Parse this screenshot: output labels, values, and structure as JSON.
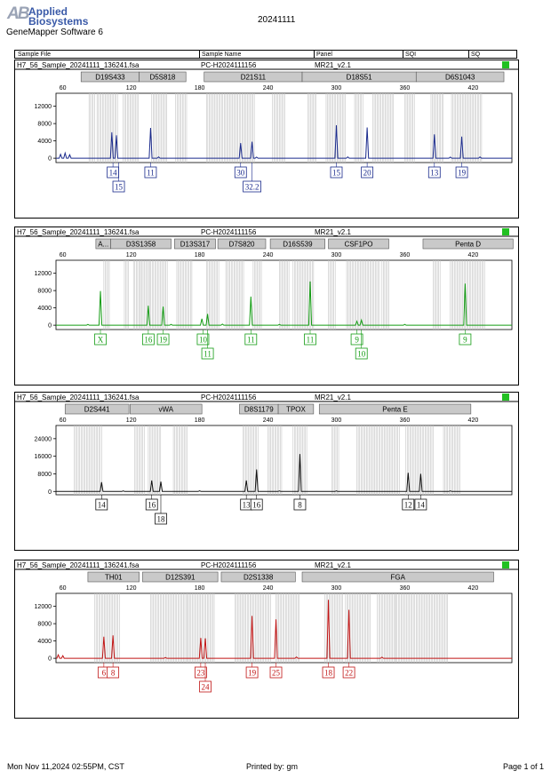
{
  "header": {
    "logo_text_1": "Applied",
    "logo_text_2": "Biosystems",
    "logo_mark": "AB",
    "software": "GeneMapper Software 6",
    "run_date": "20241111",
    "columns": {
      "sample_file": "Sample File",
      "sample_name": "Sample Name",
      "panel": "Panel",
      "sqi": "SQI",
      "sq": "SQ"
    }
  },
  "footer": {
    "timestamp": "Mon Nov 11,2024 02:55PM, CST",
    "printed_by": "Printed by: gm",
    "page": "Page 1 of 1"
  },
  "status_color": "#22c022",
  "chart_data": [
    {
      "type": "electropherogram",
      "sample_file": "H7_56_Sample_20241111_136241.fsa",
      "sample_name": "PC-H2024111156",
      "panel": "MR21_v2.1",
      "color": "#1a2a8c",
      "x_ticks": [
        60,
        120,
        180,
        240,
        300,
        360,
        420
      ],
      "xlim": [
        54,
        454
      ],
      "y_ticks": [
        0,
        4000,
        8000,
        12000
      ],
      "ylim": [
        -1000,
        15000
      ],
      "markers": [
        {
          "name": "D19S433",
          "start": 76,
          "end": 127
        },
        {
          "name": "D5S818",
          "start": 127,
          "end": 168
        },
        {
          "name": "D21S11",
          "start": 184,
          "end": 270
        },
        {
          "name": "D18S51",
          "start": 270,
          "end": 370
        },
        {
          "name": "D6S1043",
          "start": 370,
          "end": 447
        }
      ],
      "bins": [
        [
          83,
          89
        ],
        [
          90,
          109
        ],
        [
          113,
          127
        ],
        [
          138,
          152
        ],
        [
          159,
          169
        ],
        [
          186,
          229
        ],
        [
          244,
          255
        ],
        [
          275,
          283
        ],
        [
          291,
          308
        ],
        [
          316,
          324
        ],
        [
          332,
          350
        ],
        [
          360,
          369
        ],
        [
          383,
          394
        ],
        [
          401,
          428
        ]
      ],
      "peaks": [
        [
          103,
          6000
        ],
        [
          107,
          5300
        ],
        [
          137,
          7000
        ],
        [
          216,
          3500
        ],
        [
          226,
          3800
        ],
        [
          300,
          7600
        ],
        [
          327,
          7100
        ],
        [
          386,
          5500
        ],
        [
          410,
          5000
        ]
      ],
      "noise": [
        [
          58,
          900
        ],
        [
          62,
          1200
        ],
        [
          66,
          800
        ],
        [
          144,
          300
        ],
        [
          230,
          250
        ],
        [
          310,
          300
        ],
        [
          400,
          250
        ],
        [
          426,
          300
        ]
      ],
      "alleles": [
        {
          "label": "14",
          "x": 104,
          "row": 1
        },
        {
          "label": "15",
          "x": 109,
          "row": 2
        },
        {
          "label": "11",
          "x": 137,
          "row": 1
        },
        {
          "label": "30",
          "x": 216,
          "row": 1
        },
        {
          "label": "32.2",
          "x": 226,
          "row": 2
        },
        {
          "label": "15",
          "x": 300,
          "row": 1
        },
        {
          "label": "20",
          "x": 327,
          "row": 1
        },
        {
          "label": "13",
          "x": 386,
          "row": 1
        },
        {
          "label": "19",
          "x": 410,
          "row": 1
        }
      ]
    },
    {
      "type": "electropherogram",
      "sample_file": "H7_56_Sample_20241111_136241.fsa",
      "sample_name": "PC-H2024111156",
      "panel": "MR21_v2.1",
      "color": "#139c13",
      "x_ticks": [
        60,
        120,
        180,
        240,
        300,
        360,
        420
      ],
      "xlim": [
        54,
        454
      ],
      "y_ticks": [
        0,
        4000,
        8000,
        12000
      ],
      "ylim": [
        -1000,
        15000
      ],
      "markers": [
        {
          "name": "A...",
          "start": 89,
          "end": 102
        },
        {
          "name": "D3S1358",
          "start": 102,
          "end": 155
        },
        {
          "name": "D13S317",
          "start": 158,
          "end": 194
        },
        {
          "name": "D7S820",
          "start": 196,
          "end": 238
        },
        {
          "name": "D16S539",
          "start": 242,
          "end": 290
        },
        {
          "name": "CSF1PO",
          "start": 293,
          "end": 346
        },
        {
          "name": "Penta D",
          "start": 376,
          "end": 455
        }
      ],
      "bins": [
        [
          96,
          101
        ],
        [
          114,
          118
        ],
        [
          122,
          128
        ],
        [
          128,
          136
        ],
        [
          136,
          152
        ],
        [
          160,
          174
        ],
        [
          186,
          197
        ],
        [
          203,
          219
        ],
        [
          227,
          235
        ],
        [
          250,
          259
        ],
        [
          262,
          280
        ],
        [
          293,
          300
        ],
        [
          309,
          338
        ],
        [
          340,
          346
        ],
        [
          385,
          392
        ],
        [
          400,
          431
        ]
      ],
      "peaks": [
        [
          93,
          7900
        ],
        [
          135,
          4500
        ],
        [
          148,
          4300
        ],
        [
          182,
          1500
        ],
        [
          187,
          2600
        ],
        [
          225,
          6600
        ],
        [
          277,
          10100
        ],
        [
          318,
          900
        ],
        [
          322,
          1200
        ],
        [
          413,
          9600
        ]
      ],
      "noise": [
        [
          82,
          200
        ],
        [
          155,
          200
        ],
        [
          200,
          250
        ],
        [
          250,
          200
        ],
        [
          360,
          200
        ]
      ],
      "alleles": [
        {
          "label": "X",
          "x": 93,
          "row": 1
        },
        {
          "label": "16",
          "x": 135,
          "row": 1
        },
        {
          "label": "19",
          "x": 148,
          "row": 1
        },
        {
          "label": "10",
          "x": 183,
          "row": 1
        },
        {
          "label": "11",
          "x": 187,
          "row": 2
        },
        {
          "label": "11",
          "x": 225,
          "row": 1
        },
        {
          "label": "11",
          "x": 277,
          "row": 1
        },
        {
          "label": "9",
          "x": 318,
          "row": 1
        },
        {
          "label": "10",
          "x": 322,
          "row": 2
        },
        {
          "label": "9",
          "x": 413,
          "row": 1
        }
      ]
    },
    {
      "type": "electropherogram",
      "sample_file": "H7_56_Sample_20241111_136241.fsa",
      "sample_name": "PC-H2024111156",
      "panel": "MR21_v2.1",
      "color": "#111111",
      "x_ticks": [
        60,
        120,
        180,
        240,
        300,
        360,
        420
      ],
      "xlim": [
        54,
        454
      ],
      "y_ticks": [
        0,
        8000,
        16000,
        24000
      ],
      "ylim": [
        -1500,
        30000
      ],
      "markers": [
        {
          "name": "D2S441",
          "start": 62,
          "end": 118
        },
        {
          "name": "vWA",
          "start": 119,
          "end": 182
        },
        {
          "name": "D8S1179",
          "start": 215,
          "end": 249
        },
        {
          "name": "TPOX",
          "start": 249,
          "end": 280
        },
        {
          "name": "Penta E",
          "start": 285,
          "end": 418
        }
      ],
      "bins": [
        [
          70,
          95
        ],
        [
          123,
          132
        ],
        [
          135,
          146
        ],
        [
          157,
          169
        ],
        [
          218,
          232
        ],
        [
          240,
          253
        ],
        [
          262,
          275
        ],
        [
          296,
          303
        ],
        [
          318,
          356
        ],
        [
          361,
          386
        ],
        [
          394,
          409
        ]
      ],
      "peaks": [
        [
          94,
          4200
        ],
        [
          138,
          5000
        ],
        [
          146,
          4500
        ],
        [
          221,
          5000
        ],
        [
          230,
          10000
        ],
        [
          268,
          17000
        ],
        [
          363,
          8500
        ],
        [
          374,
          8000
        ]
      ],
      "noise": [
        [
          113,
          250
        ],
        [
          180,
          300
        ],
        [
          250,
          250
        ],
        [
          300,
          250
        ],
        [
          400,
          250
        ]
      ],
      "alleles": [
        {
          "label": "14",
          "x": 94,
          "row": 1
        },
        {
          "label": "16",
          "x": 138,
          "row": 1
        },
        {
          "label": "18",
          "x": 146,
          "row": 2
        },
        {
          "label": "13",
          "x": 221,
          "row": 1
        },
        {
          "label": "16",
          "x": 230,
          "row": 1
        },
        {
          "label": "8",
          "x": 268,
          "row": 1
        },
        {
          "label": "12",
          "x": 363,
          "row": 1
        },
        {
          "label": "14",
          "x": 374,
          "row": 1
        }
      ]
    },
    {
      "type": "electropherogram",
      "sample_file": "H7_56_Sample_20241111_136241.fsa",
      "sample_name": "PC-H2024111156",
      "panel": "MR21_v2.1",
      "color": "#c01414",
      "x_ticks": [
        60,
        120,
        180,
        240,
        300,
        360,
        420
      ],
      "xlim": [
        54,
        454
      ],
      "y_ticks": [
        0,
        4000,
        8000,
        12000
      ],
      "ylim": [
        -1000,
        15000
      ],
      "markers": [
        {
          "name": "TH01",
          "start": 82,
          "end": 127
        },
        {
          "name": "D12S391",
          "start": 130,
          "end": 196
        },
        {
          "name": "D2S1338",
          "start": 199,
          "end": 264
        },
        {
          "name": "FGA",
          "start": 270,
          "end": 438
        }
      ],
      "bins": [
        [
          88,
          110
        ],
        [
          137,
          170
        ],
        [
          170,
          193
        ],
        [
          211,
          243
        ],
        [
          247,
          268
        ],
        [
          290,
          306
        ],
        [
          308,
          330
        ],
        [
          336,
          352
        ],
        [
          352,
          398
        ]
      ],
      "peaks": [
        [
          96,
          5000
        ],
        [
          104,
          5300
        ],
        [
          181,
          4700
        ],
        [
          185,
          4600
        ],
        [
          226,
          9800
        ],
        [
          247,
          9000
        ],
        [
          293,
          13500
        ],
        [
          311,
          11200
        ]
      ],
      "noise": [
        [
          56,
          800
        ],
        [
          60,
          600
        ],
        [
          150,
          200
        ],
        [
          265,
          300
        ],
        [
          340,
          250
        ]
      ],
      "alleles": [
        {
          "label": "6",
          "x": 96,
          "row": 1
        },
        {
          "label": "8",
          "x": 104,
          "row": 1
        },
        {
          "label": "23",
          "x": 181,
          "row": 1
        },
        {
          "label": "24",
          "x": 185,
          "row": 2
        },
        {
          "label": "19",
          "x": 226,
          "row": 1
        },
        {
          "label": "25",
          "x": 247,
          "row": 1
        },
        {
          "label": "18",
          "x": 293,
          "row": 1
        },
        {
          "label": "22",
          "x": 311,
          "row": 1
        }
      ]
    }
  ]
}
